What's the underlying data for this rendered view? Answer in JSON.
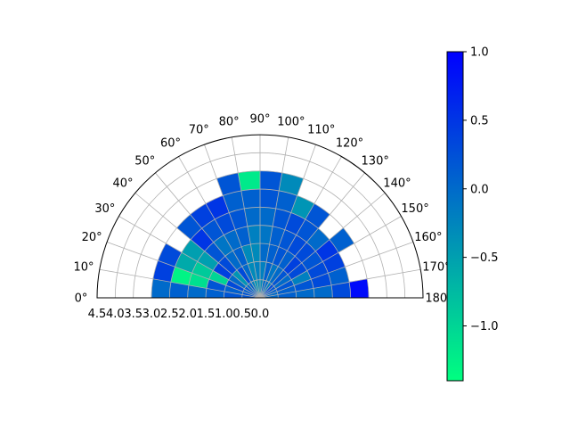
{
  "chart_data": {
    "type": "heatmap",
    "subtype": "polar-half",
    "theta_range_deg": [
      0,
      180
    ],
    "r_range": [
      0,
      4.5
    ],
    "theta_edges_deg": [
      0,
      10,
      20,
      30,
      40,
      50,
      60,
      70,
      80,
      90,
      100,
      110,
      120,
      130,
      140,
      150,
      160,
      170,
      180
    ],
    "r_edges": [
      0,
      0.5,
      1.0,
      1.5,
      2.0,
      2.5,
      3.0,
      3.5,
      4.0,
      4.5
    ],
    "theta_tick_labels": [
      "0°",
      "10°",
      "20°",
      "30°",
      "40°",
      "50°",
      "60°",
      "70°",
      "80°",
      "90°",
      "100°",
      "110°",
      "120°",
      "130°",
      "140°",
      "150°",
      "160°",
      "170°",
      "180°"
    ],
    "r_tick_labels": [
      "4.5",
      "4.0",
      "3.5",
      "3.0",
      "2.5",
      "2.0",
      "1.5",
      "1.0",
      "0.5",
      "0.0"
    ],
    "grid": true,
    "colormap": "winter_r",
    "colorbar": {
      "vmin": -1.4,
      "vmax": 1.0,
      "ticks": [
        1.0,
        0.5,
        0.0,
        -0.5,
        -1.0
      ],
      "tick_labels": [
        "1.0",
        "0.5",
        "0.0",
        "−0.5",
        "−1.0"
      ],
      "placement": "right"
    },
    "cell_values": [
      [
        0.2,
        0.2,
        0.1,
        0.0,
        0.1,
        0.0,
        null,
        null,
        null
      ],
      [
        0.2,
        0.1,
        0.2,
        -1.1,
        -1.3,
        0.4,
        null,
        null,
        null
      ],
      [
        0.1,
        0.3,
        -1.0,
        -0.9,
        -0.6,
        0.3,
        null,
        null,
        null
      ],
      [
        0.2,
        0.0,
        0.4,
        -0.5,
        -0.5,
        null,
        null,
        null,
        null
      ],
      [
        0.0,
        -0.4,
        0.3,
        0.2,
        0.5,
        0.2,
        null,
        null,
        null
      ],
      [
        0.1,
        0.3,
        0.0,
        -0.1,
        0.2,
        0.4,
        null,
        null,
        null
      ],
      [
        -0.2,
        0.0,
        0.1,
        0.0,
        0.3,
        0.5,
        null,
        null,
        null
      ],
      [
        -0.4,
        -0.3,
        -0.3,
        0.1,
        0.2,
        0.1,
        0.2,
        null,
        null
      ],
      [
        -0.3,
        -0.2,
        -0.3,
        -0.2,
        0.0,
        0.1,
        -1.2,
        null,
        null
      ],
      [
        -0.3,
        -0.2,
        0.0,
        -0.1,
        0.0,
        0.2,
        0.2,
        null,
        null
      ],
      [
        0.0,
        0.1,
        0.1,
        0.1,
        0.2,
        0.1,
        -0.3,
        null,
        null
      ],
      [
        0.0,
        -0.1,
        0.2,
        0.2,
        0.3,
        -0.4,
        null,
        null,
        null
      ],
      [
        -0.2,
        0.0,
        0.1,
        0.3,
        0.2,
        0.2,
        null,
        null,
        null
      ],
      [
        0.3,
        0.2,
        0.4,
        0.3,
        0.0,
        null,
        null,
        null,
        null
      ],
      [
        0.2,
        0.0,
        0.3,
        0.2,
        0.5,
        0.1,
        null,
        null,
        null
      ],
      [
        0.1,
        0.2,
        -0.2,
        0.3,
        0.4,
        null,
        null,
        null,
        null
      ],
      [
        0.0,
        0.1,
        0.2,
        0.3,
        0.1,
        null,
        null,
        null,
        null
      ],
      [
        0.0,
        0.1,
        0.0,
        0.0,
        0.3,
        0.9,
        null,
        null,
        null
      ]
    ]
  }
}
